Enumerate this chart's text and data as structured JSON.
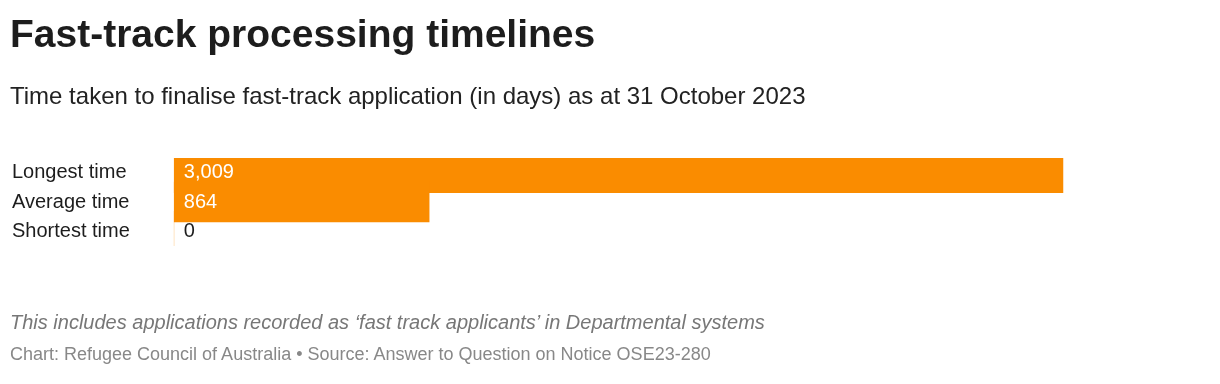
{
  "chart_data": {
    "type": "bar",
    "orientation": "horizontal",
    "title": "Fast-track processing timelines",
    "subtitle": "Time taken to finalise fast-track application (in days) as at 31 October 2023",
    "categories": [
      "Longest time",
      "Average time",
      "Shortest time"
    ],
    "values": [
      3009,
      864,
      0
    ],
    "value_labels": [
      "3,009",
      "864",
      "0"
    ],
    "color": "#fa8c00",
    "annotations": [
      "This includes applications recorded as ‘fast track applicants’ in Departmental systems",
      "Chart: Refugee Council of Australia • Source: Answer to Question on Notice OSE23-280"
    ]
  }
}
